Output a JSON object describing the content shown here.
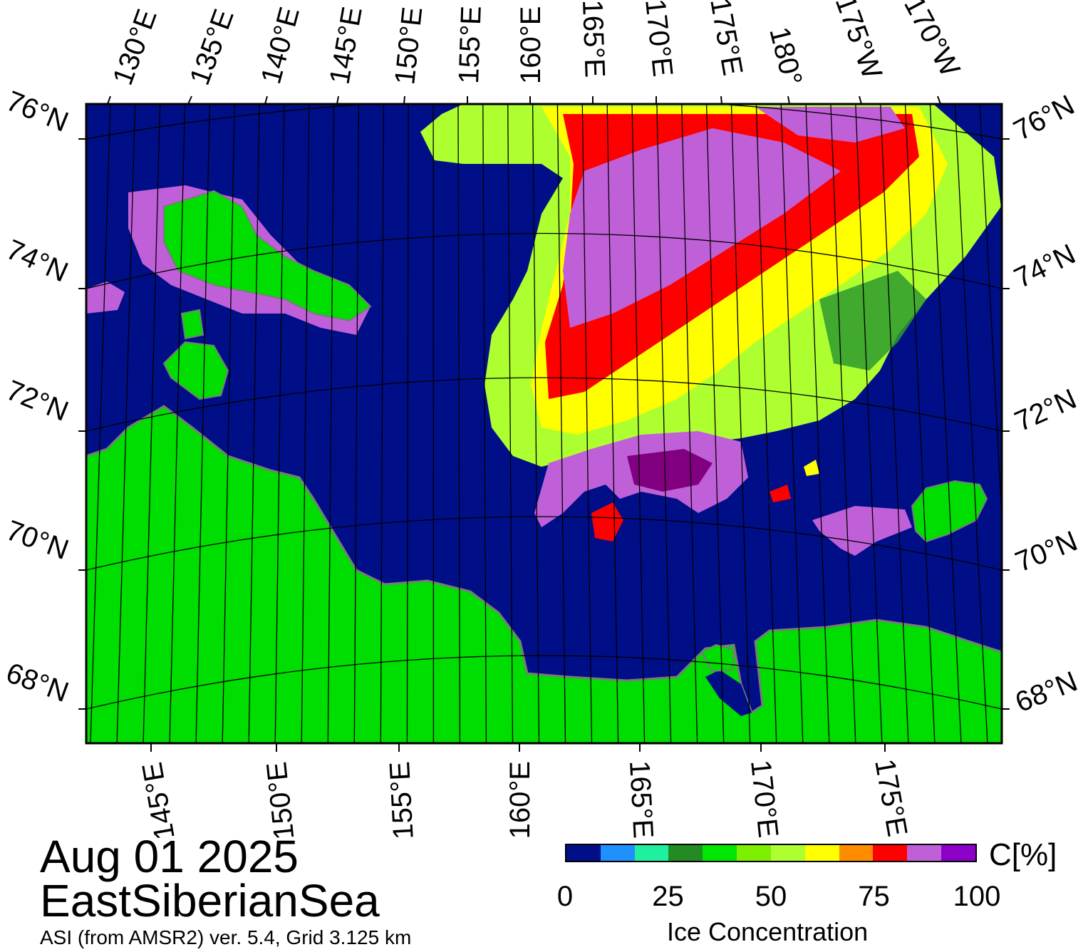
{
  "footer": {
    "date": "Aug 01 2025",
    "region": "EastSiberianSea",
    "source": "ASI (from AMSR2) ver. 5.4,  Grid 3.125 km"
  },
  "colorbar": {
    "title": "Ice Concentration",
    "unit": "C[%]",
    "ticks": [
      {
        "label": "0",
        "value": 0
      },
      {
        "label": "25",
        "value": 25
      },
      {
        "label": "50",
        "value": 50
      },
      {
        "label": "75",
        "value": 75
      },
      {
        "label": "100",
        "value": 100
      }
    ],
    "colors": [
      "#000f87",
      "#1e90ff",
      "#1ef0a0",
      "#228b22",
      "#00e600",
      "#7cf000",
      "#adff2f",
      "#ffff00",
      "#ff8c00",
      "#ff0000",
      "#c060d8",
      "#8c00c8"
    ]
  },
  "map": {
    "colors": {
      "ocean": "#000f87",
      "land": "#00dd00",
      "coast": "#7a7a7a",
      "ice_high": "#c060d8",
      "ice_red": "#ff0000",
      "ice_yellow": "#ffff00",
      "ice_lime": "#adff2f",
      "ice_green": "#2e9a2e",
      "ice_full": "#8c00c8",
      "ice_dark": "#800080"
    },
    "top_lon_labels": [
      "130°E",
      "135°E",
      "140°E",
      "145°E",
      "150°E",
      "155°E",
      "160°E",
      "165°E",
      "170°E",
      "175°E",
      "180°",
      "175°W",
      "170°W"
    ],
    "bottom_lon_labels": [
      "145°E",
      "150°E",
      "155°E",
      "160°E",
      "165°E",
      "170°E",
      "175°E"
    ],
    "left_lat_labels": [
      "76°N",
      "74°N",
      "72°N",
      "70°N",
      "68°N"
    ],
    "right_lat_labels": [
      "76°N",
      "74°N",
      "72°N",
      "70°N",
      "68°N"
    ]
  }
}
